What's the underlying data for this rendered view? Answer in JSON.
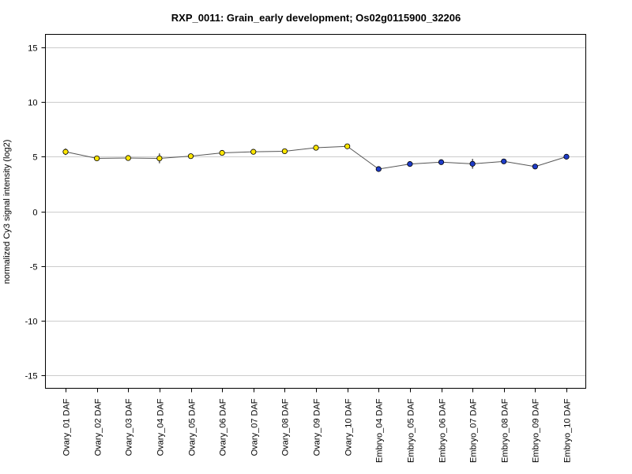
{
  "chart_data": {
    "type": "line",
    "title": "RXP_0011: Grain_early development; Os02g0115900_32206",
    "xlabel": "",
    "ylabel": "normalized Cy3 signal intensity (log2)",
    "ylim": [
      -16.2,
      16.2
    ],
    "yticks": [
      "15",
      "10",
      "5",
      "0",
      "-5",
      "-10",
      "-15"
    ],
    "ytick_values": [
      15,
      10,
      5,
      0,
      -5,
      -10,
      -15
    ],
    "grid": true,
    "categories": [
      "Ovary_01 DAF",
      "Ovary_02 DAF",
      "Ovary_03 DAF",
      "Ovary_04 DAF",
      "Ovary_05 DAF",
      "Ovary_06 DAF",
      "Ovary_07 DAF",
      "Ovary_08 DAF",
      "Ovary_09 DAF",
      "Ovary_10 DAF",
      "Embryo_04 DAF",
      "Embryo_05 DAF",
      "Embryo_06 DAF",
      "Embryo_07 DAF",
      "Embryo_08 DAF",
      "Embryo_09 DAF",
      "Embryo_10 DAF"
    ],
    "values": [
      5.45,
      4.85,
      4.88,
      4.85,
      5.05,
      5.35,
      5.45,
      5.5,
      5.82,
      5.95,
      3.87,
      4.33,
      4.5,
      4.35,
      4.57,
      4.1,
      5.0
    ],
    "error": [
      0.3,
      0.1,
      0.1,
      0.45,
      0.1,
      0.15,
      0.1,
      0.15,
      0.1,
      0.1,
      0.15,
      0.1,
      0.1,
      0.45,
      0.1,
      0.1,
      0.1
    ],
    "point_colors": [
      "#ffe600",
      "#ffe600",
      "#ffe600",
      "#ffe600",
      "#ffe600",
      "#ffe600",
      "#ffe600",
      "#ffe600",
      "#ffe600",
      "#ffe600",
      "#1e3cc8",
      "#1e3cc8",
      "#1e3cc8",
      "#1e3cc8",
      "#1e3cc8",
      "#1e3cc8",
      "#1e3cc8"
    ],
    "line_color": "#555555",
    "grid_color": "#cccccc"
  }
}
